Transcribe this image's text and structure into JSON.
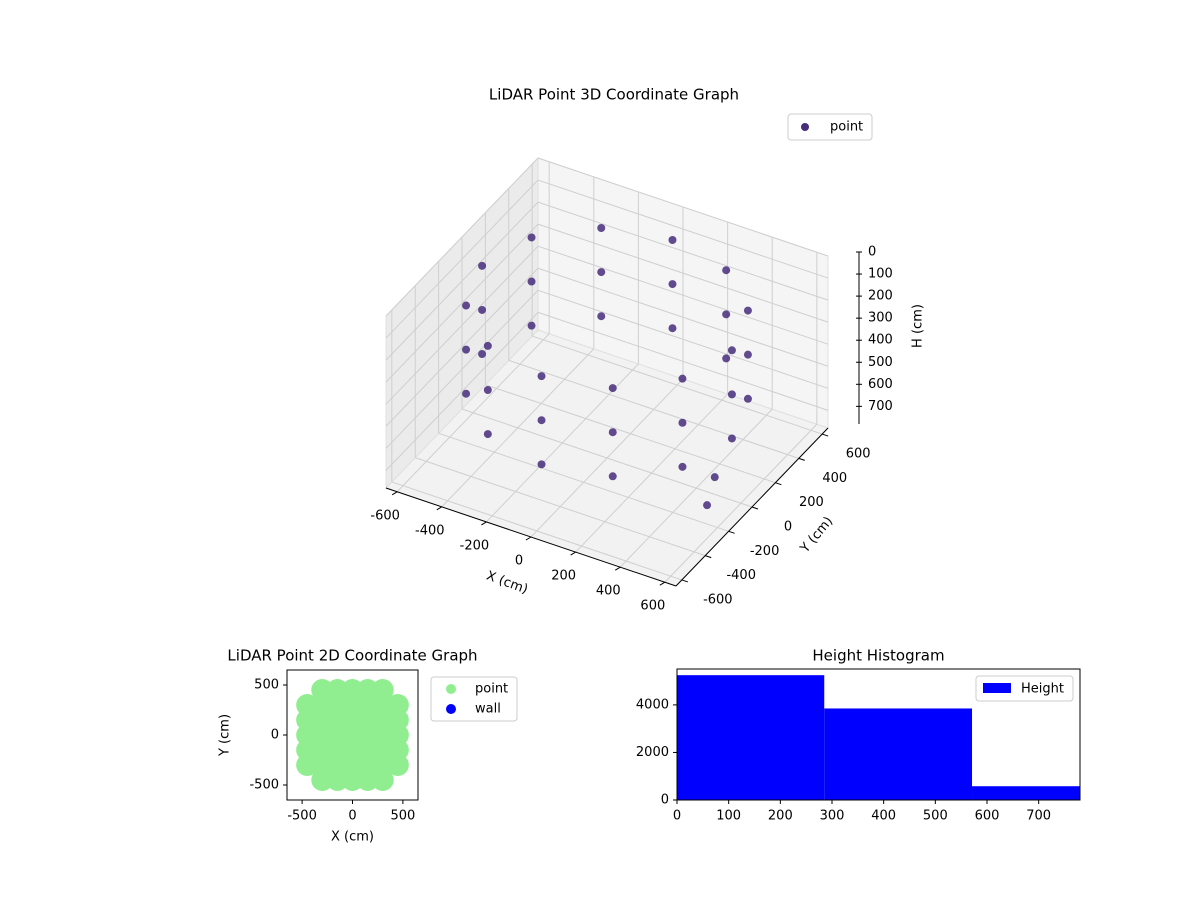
{
  "chart_data": [
    {
      "type": "scatter3d",
      "title": "LiDAR Point 3D Coordinate Graph",
      "xlabel": "X (cm)",
      "ylabel": "Y (cm)",
      "zlabel": "H (cm)",
      "xlim": [
        -650,
        650
      ],
      "ylim": [
        -650,
        650
      ],
      "zlim": [
        0,
        780
      ],
      "z_inverted": true,
      "xticks": [
        -600,
        -400,
        -200,
        0,
        200,
        400,
        600
      ],
      "yticks": [
        -600,
        -400,
        -200,
        0,
        200,
        400,
        600
      ],
      "zticks": [
        0,
        100,
        200,
        300,
        400,
        500,
        600,
        700
      ],
      "grid": true,
      "legend": "upper right",
      "series": [
        {
          "name": "point",
          "color": "#472d7b",
          "x": [
            560,
            485,
            280,
            0,
            -280,
            -485,
            -560,
            -485,
            -280,
            0,
            280,
            485,
            560,
            485,
            280,
            0,
            -280,
            -485,
            -560,
            -485,
            -280,
            0,
            280,
            485,
            560,
            485,
            280,
            0,
            -280,
            -485,
            -560,
            -485,
            -280,
            0,
            280,
            485,
            427,
            492
          ],
          "y": [
            0,
            280,
            485,
            560,
            485,
            280,
            0,
            -280,
            -485,
            -560,
            -485,
            -280,
            0,
            280,
            485,
            560,
            485,
            280,
            0,
            -280,
            -485,
            -560,
            -485,
            -280,
            0,
            280,
            485,
            560,
            485,
            280,
            0,
            -280,
            -485,
            -560,
            -485,
            -280,
            107,
            -83
          ],
          "z": [
            100,
            100,
            100,
            100,
            100,
            100,
            100,
            100,
            100,
            100,
            100,
            100,
            300,
            300,
            300,
            300,
            300,
            300,
            300,
            300,
            300,
            300,
            300,
            300,
            500,
            500,
            500,
            500,
            500,
            500,
            500,
            500,
            500,
            500,
            500,
            500,
            780,
            780
          ]
        }
      ]
    },
    {
      "type": "scatter",
      "title": "LiDAR Point 2D Coordinate Graph",
      "xlabel": "X (cm)",
      "ylabel": "Y (cm)",
      "xlim": [
        -650,
        650
      ],
      "ylim": [
        -650,
        650
      ],
      "xticks": [
        -500,
        0,
        500
      ],
      "yticks": [
        -500,
        0,
        500
      ],
      "legend": "outside right",
      "series": [
        {
          "name": "point",
          "color": "#90ee90",
          "x": [
            -450,
            -450,
            -450,
            -450,
            -450,
            -300,
            -300,
            -300,
            -300,
            -300,
            -300,
            -300,
            -150,
            -150,
            -150,
            -150,
            -150,
            -150,
            -150,
            0,
            0,
            0,
            0,
            0,
            0,
            0,
            150,
            150,
            150,
            150,
            150,
            150,
            150,
            300,
            300,
            300,
            300,
            300,
            300,
            300,
            450,
            450,
            450,
            450,
            450
          ],
          "y": [
            -300,
            -150,
            0,
            150,
            300,
            -450,
            -300,
            -150,
            0,
            150,
            300,
            450,
            -450,
            -300,
            -150,
            0,
            150,
            300,
            450,
            -450,
            -300,
            -150,
            0,
            150,
            300,
            450,
            -450,
            -300,
            -150,
            0,
            150,
            300,
            450,
            -450,
            -300,
            -150,
            0,
            150,
            300,
            450,
            -300,
            -150,
            0,
            150,
            300
          ]
        },
        {
          "name": "wall",
          "color": "#0000ff",
          "x": [],
          "y": []
        }
      ]
    },
    {
      "type": "histogram",
      "title": "Height Histogram",
      "name": "Height",
      "color": "#0000ff",
      "bins": [
        0,
        285,
        571,
        780
      ],
      "counts": [
        5250,
        3850,
        580
      ],
      "xlim": [
        0,
        780
      ],
      "ylim": [
        0,
        5510
      ],
      "xticks": [
        0,
        100,
        200,
        300,
        400,
        500,
        600,
        700
      ],
      "yticks": [
        0,
        2000,
        4000
      ],
      "legend": "upper right"
    }
  ]
}
